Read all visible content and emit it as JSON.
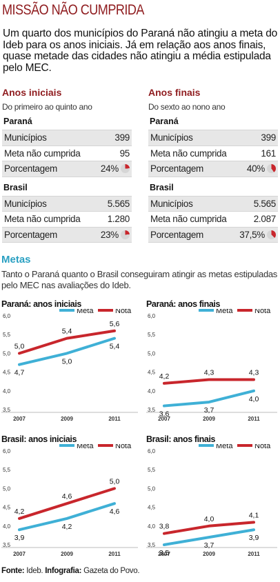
{
  "title": "MISSÃO NÃO CUMPRIDA",
  "intro": "Um quarto dos municípios do Paraná não atingiu a meta do Ideb para os anos iniciais. Já em relação aos anos finais, quase metade das cidades não atingiu a média estipulada pelo MEC.",
  "colors": {
    "meta": "#3fb0d6",
    "nota": "#c8262c",
    "accent": "#8f1c1f"
  },
  "tables": [
    {
      "title": "Anos iniciais",
      "subtitle": "Do primeiro ao quinto ano",
      "groups": [
        {
          "name": "Paraná",
          "rows": [
            {
              "label": "Municípios",
              "value": "399"
            },
            {
              "label": "Meta não cumprida",
              "value": "95"
            },
            {
              "label": "Porcentagem",
              "value": "24%",
              "pct": 24
            }
          ]
        },
        {
          "name": "Brasil",
          "rows": [
            {
              "label": "Municípios",
              "value": "5.565"
            },
            {
              "label": "Meta não cumprida",
              "value": "1.280"
            },
            {
              "label": "Porcentagem",
              "value": "23%",
              "pct": 23
            }
          ]
        }
      ]
    },
    {
      "title": "Anos finais",
      "subtitle": "Do sexto ao nono ano",
      "groups": [
        {
          "name": "Paraná",
          "rows": [
            {
              "label": "Municípios",
              "value": "399"
            },
            {
              "label": "Meta não cumprida",
              "value": "161"
            },
            {
              "label": "Porcentagem",
              "value": "40%",
              "pct": 40
            }
          ]
        },
        {
          "name": "Brasil",
          "rows": [
            {
              "label": "Municípios",
              "value": "5.565"
            },
            {
              "label": "Meta não cumprida",
              "value": "2.087"
            },
            {
              "label": "Porcentagem",
              "value": "37,5%",
              "pct": 37.5
            }
          ]
        }
      ]
    }
  ],
  "metas": {
    "title": "Metas",
    "text": "Tanto o Paraná quanto o Brasil conseguiram atingir as metas estipuladas pelo MEC nas avaliações do Ideb."
  },
  "chart_data": [
    {
      "type": "line",
      "title": "Paraná: anos iniciais",
      "x": [
        "2007",
        "2009",
        "2011"
      ],
      "yticks": [
        "6,0",
        "5,5",
        "5,0",
        "4,5",
        "4,0",
        "3,5"
      ],
      "ylim": [
        3.5,
        6.0
      ],
      "legend_position": "top-right",
      "series": [
        {
          "name": "Meta",
          "values": [
            4.7,
            5.0,
            5.4
          ],
          "labels": [
            "4,7",
            "5,0",
            "5,4"
          ]
        },
        {
          "name": "Nota",
          "values": [
            5.0,
            5.4,
            5.6
          ],
          "labels": [
            "5,0",
            "5,4",
            "5,6"
          ]
        }
      ]
    },
    {
      "type": "line",
      "title": "Paraná: anos finais",
      "x": [
        "2007",
        "2009",
        "2011"
      ],
      "yticks": [
        "6,0",
        "5,5",
        "5,0",
        "4,5",
        "4,0",
        "3,5"
      ],
      "ylim": [
        3.5,
        6.0
      ],
      "legend_position": "top-right",
      "series": [
        {
          "name": "Meta",
          "values": [
            3.6,
            3.7,
            4.0
          ],
          "labels": [
            "3,6",
            "3,7",
            "4,0"
          ]
        },
        {
          "name": "Nota",
          "values": [
            4.2,
            4.3,
            4.3
          ],
          "labels": [
            "4,2",
            "4,3",
            "4,3"
          ]
        }
      ]
    },
    {
      "type": "line",
      "title": "Brasil: anos iniciais",
      "x": [
        "2007",
        "2009",
        "2011"
      ],
      "yticks": [
        "6,0",
        "5,5",
        "5,0",
        "4,5",
        "4,0",
        "3,5"
      ],
      "ylim": [
        3.5,
        6.0
      ],
      "legend_position": "top-right",
      "series": [
        {
          "name": "Meta",
          "values": [
            3.9,
            4.2,
            4.6
          ],
          "labels": [
            "3,9",
            "4,2",
            "4,6"
          ]
        },
        {
          "name": "Nota",
          "values": [
            4.2,
            4.6,
            5.0
          ],
          "labels": [
            "4,2",
            "4,6",
            "5,0"
          ]
        }
      ]
    },
    {
      "type": "line",
      "title": "Brasil: anos finais",
      "x": [
        "2007",
        "2009",
        "2011"
      ],
      "yticks": [
        "6,0",
        "5,5",
        "5,0",
        "4,5",
        "4,0",
        "3,5"
      ],
      "ylim": [
        3.5,
        6.0
      ],
      "legend_position": "top-right",
      "series": [
        {
          "name": "Meta",
          "values": [
            3.5,
            3.7,
            3.9
          ],
          "labels": [
            "3,5",
            "3,7",
            "3,9"
          ]
        },
        {
          "name": "Nota",
          "values": [
            3.8,
            4.0,
            4.1
          ],
          "labels": [
            "3,8",
            "4,0",
            "4,1"
          ]
        }
      ]
    }
  ],
  "source": {
    "label1": "Fonte:",
    "text1": "Ideb.",
    "label2": "Infografia:",
    "text2": "Gazeta do Povo."
  }
}
